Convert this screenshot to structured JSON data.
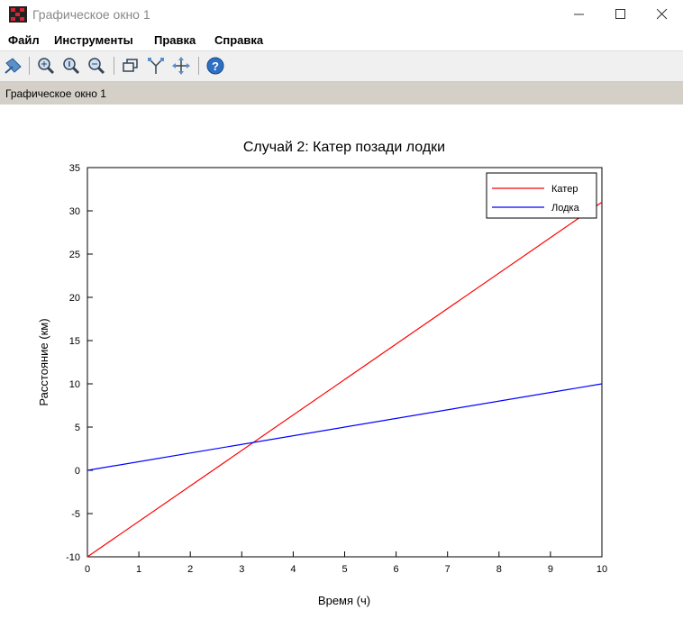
{
  "window": {
    "title": "Графическое окно 1",
    "minimize_icon": "minimize-icon",
    "maximize_icon": "maximize-icon",
    "close_icon": "close-icon"
  },
  "menu": [
    "Файл",
    "Инструменты",
    "Правка",
    "Справка"
  ],
  "toolbar_icons": [
    "datatip-icon",
    "zoom-in-icon",
    "zoom-original-icon",
    "zoom-out-icon",
    "rotate-icon",
    "axes-icon",
    "pan-icon",
    "help-icon"
  ],
  "panel": {
    "title": "Графическое окно 1",
    "background": "#d4d0c8"
  },
  "chart_data": {
    "type": "line",
    "title": "Случай 2: Катер позади лодки",
    "xlabel": "Время (ч)",
    "ylabel": "Расстояние (км)",
    "xlim": [
      0,
      10
    ],
    "ylim": [
      -10,
      35
    ],
    "xticks": [
      "0",
      "1",
      "2",
      "3",
      "4",
      "5",
      "6",
      "7",
      "8",
      "9",
      "10"
    ],
    "yticks": [
      "-10",
      "-5",
      "0",
      "5",
      "10",
      "15",
      "20",
      "25",
      "30",
      "35"
    ],
    "grid": false,
    "legend_position": "top-right",
    "series": [
      {
        "name": "Катер",
        "color": "#ff0000",
        "x": [
          0,
          10
        ],
        "y": [
          -10,
          31
        ]
      },
      {
        "name": "Лодка",
        "color": "#0000ff",
        "x": [
          0,
          10
        ],
        "y": [
          0,
          10
        ]
      }
    ]
  }
}
